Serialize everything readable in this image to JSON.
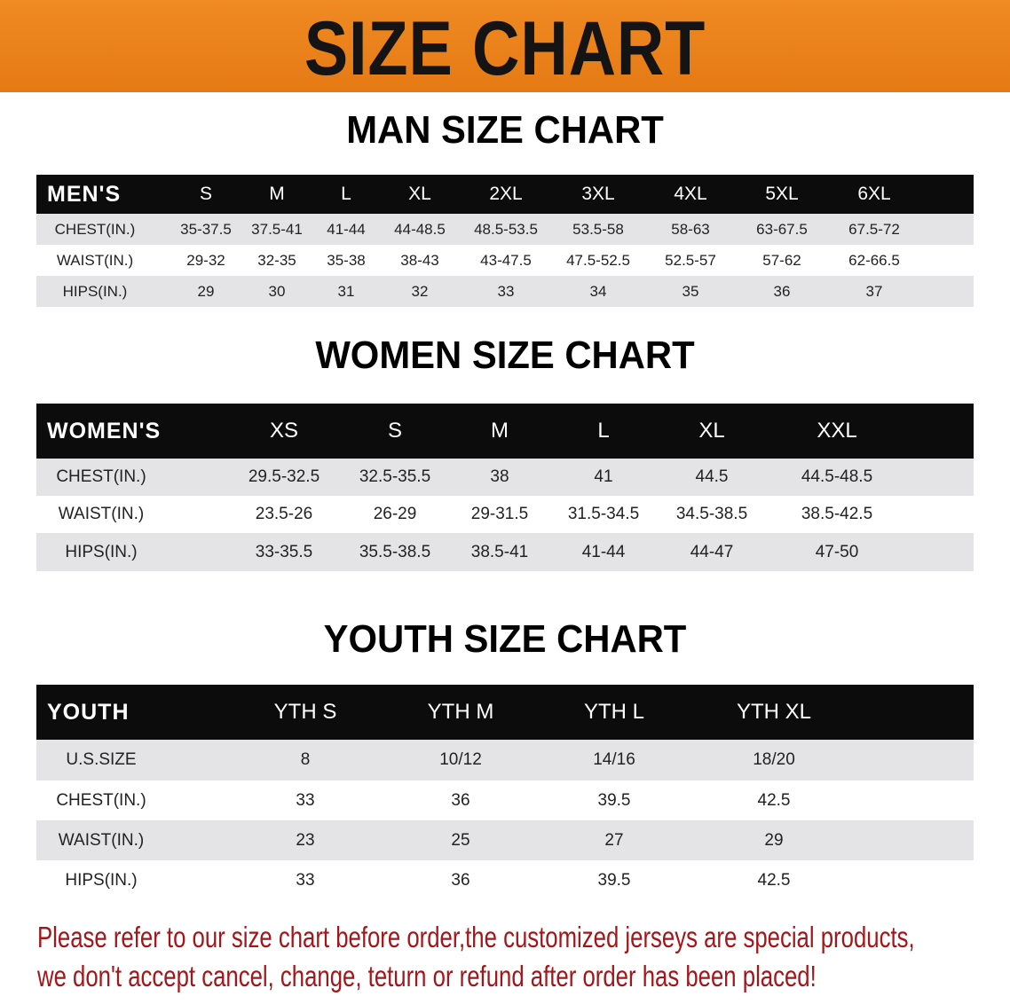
{
  "banner": {
    "title": "SIZE CHART",
    "color": "#e8821c"
  },
  "men": {
    "title": "MAN SIZE CHART",
    "header": [
      "MEN'S",
      "S",
      "M",
      "L",
      "XL",
      "2XL",
      "3XL",
      "4XL",
      "5XL",
      "6XL"
    ],
    "rows": [
      [
        "CHEST(IN.)",
        "35-37.5",
        "37.5-41",
        "41-44",
        "44-48.5",
        "48.5-53.5",
        "53.5-58",
        "58-63",
        "63-67.5",
        "67.5-72"
      ],
      [
        "WAIST(IN.)",
        "29-32",
        "32-35",
        "35-38",
        "38-43",
        "43-47.5",
        "47.5-52.5",
        "52.5-57",
        "57-62",
        "62-66.5"
      ],
      [
        "HIPS(IN.)",
        "29",
        "30",
        "31",
        "32",
        "33",
        "34",
        "35",
        "36",
        "37"
      ]
    ]
  },
  "women": {
    "title": "WOMEN SIZE CHART",
    "header": [
      "WOMEN'S",
      "XS",
      "S",
      "M",
      "L",
      "XL",
      "XXL"
    ],
    "rows": [
      [
        "CHEST(IN.)",
        "29.5-32.5",
        "32.5-35.5",
        "38",
        "41",
        "44.5",
        "44.5-48.5"
      ],
      [
        "WAIST(IN.)",
        "23.5-26",
        "26-29",
        "29-31.5",
        "31.5-34.5",
        "34.5-38.5",
        "38.5-42.5"
      ],
      [
        "HIPS(IN.)",
        "33-35.5",
        "35.5-38.5",
        "38.5-41",
        "41-44",
        "44-47",
        "47-50"
      ]
    ]
  },
  "youth": {
    "title": "YOUTH SIZE CHART",
    "header": [
      "YOUTH",
      "YTH S",
      "YTH M",
      "YTH L",
      "YTH XL"
    ],
    "rows": [
      [
        "U.S.SIZE",
        "8",
        "10/12",
        "14/16",
        "18/20"
      ],
      [
        "CHEST(IN.)",
        "33",
        "36",
        "39.5",
        "42.5"
      ],
      [
        "WAIST(IN.)",
        "23",
        "25",
        "27",
        "29"
      ],
      [
        "HIPS(IN.)",
        "33",
        "36",
        "39.5",
        "42.5"
      ]
    ]
  },
  "notice": {
    "line1": "Please refer to our size chart before order,the customized jerseys are special products,",
    "line2": "we don't accept cancel, change, teturn or refund after order has been placed!",
    "color": "#a4161a"
  }
}
